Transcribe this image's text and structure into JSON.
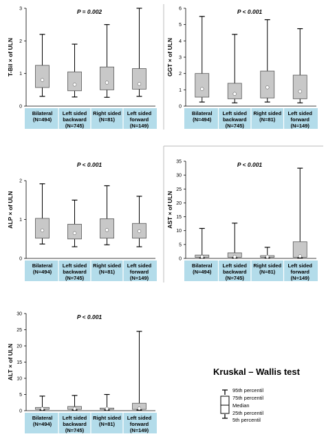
{
  "colors": {
    "box_fill": "#c8c8c8",
    "box_stroke": "#555555",
    "label_band": "#b3dcea",
    "median_marker": "#ffffff",
    "divider": "#bbbbbb"
  },
  "groups": [
    {
      "line1": "Bilateral",
      "line2": "(N=494)"
    },
    {
      "line1": "Left sided",
      "line2": "backward"
    },
    {
      "line1": "Right sided",
      "line2": "(N=81)"
    },
    {
      "line1": "Left sided",
      "line2": "forward"
    }
  ],
  "group_line3": [
    "",
    "(N=745)",
    "",
    "(N=149)"
  ],
  "chart_data": [
    {
      "type": "box",
      "title": "P = 0.002",
      "ylabel": "T-Bil × of ULN",
      "ylim": [
        0,
        3
      ],
      "yticks": [
        "0",
        "1",
        "2",
        "3"
      ],
      "categories": [
        "Bilateral (N=494)",
        "Left sided backward (N=745)",
        "Right sided (N=81)",
        "Left sided forward (N=149)"
      ],
      "p5": [
        0.3,
        0.28,
        0.27,
        0.3
      ],
      "p25": [
        0.57,
        0.47,
        0.5,
        0.52
      ],
      "median": [
        0.8,
        0.66,
        0.72,
        0.68
      ],
      "p75": [
        1.25,
        1.05,
        1.2,
        1.15
      ],
      "p95": [
        2.2,
        1.9,
        2.5,
        3.0
      ]
    },
    {
      "type": "box",
      "title": "P < 0.001",
      "ylabel": "GGT × of ULN",
      "ylim": [
        0,
        6
      ],
      "yticks": [
        "0",
        "1",
        "2",
        "3",
        "4",
        "5",
        "6"
      ],
      "categories": [
        "Bilateral (N=494)",
        "Left sided backward (N=745)",
        "Right sided (N=81)",
        "Left sided forward (N=149)"
      ],
      "p5": [
        0.25,
        0.2,
        0.25,
        0.2
      ],
      "p25": [
        0.55,
        0.45,
        0.5,
        0.45
      ],
      "median": [
        1.05,
        0.75,
        1.15,
        0.9
      ],
      "p75": [
        2.0,
        1.4,
        2.15,
        1.9
      ],
      "p95": [
        5.5,
        4.4,
        5.3,
        4.75
      ]
    },
    {
      "type": "box",
      "title": "P < 0.001",
      "ylabel": "ALP × of ULN",
      "ylim": [
        0,
        2.5
      ],
      "yticks": [
        "0",
        "1",
        "2"
      ],
      "categories": [
        "Bilateral (N=494)",
        "Left sided backward (N=745)",
        "Right sided (N=81)",
        "Left sided forward (N=149)"
      ],
      "p5": [
        0.37,
        0.3,
        0.35,
        0.3
      ],
      "p25": [
        0.52,
        0.5,
        0.52,
        0.52
      ],
      "median": [
        0.72,
        0.65,
        0.73,
        0.7
      ],
      "p75": [
        1.03,
        0.88,
        1.02,
        0.9
      ],
      "p95": [
        1.92,
        1.5,
        1.87,
        1.6
      ]
    },
    {
      "type": "box",
      "title": "P < 0.001",
      "ylabel": "AST × of ULN",
      "ylim": [
        0,
        35
      ],
      "yticks": [
        "0",
        "5",
        "10",
        "15",
        "20",
        "25",
        "30",
        "35"
      ],
      "categories": [
        "Bilateral (N=494)",
        "Left sided backward (N=745)",
        "Right sided (N=81)",
        "Left sided forward (N=149)"
      ],
      "p5": [
        0.2,
        0.2,
        0.2,
        0.2
      ],
      "p25": [
        0.4,
        0.4,
        0.4,
        0.4
      ],
      "median": [
        0.6,
        0.6,
        0.6,
        0.8
      ],
      "p75": [
        1.2,
        2.0,
        1.0,
        6.0
      ],
      "p95": [
        10.8,
        12.7,
        4.0,
        32.5
      ]
    },
    {
      "type": "box",
      "title": "P < 0.001",
      "ylabel": "ALT × of ULN",
      "ylim": [
        0,
        30
      ],
      "yticks": [
        "0",
        "5",
        "10",
        "15",
        "20",
        "25",
        "30"
      ],
      "categories": [
        "Bilateral (N=494)",
        "Left sided backward (N=745)",
        "Right sided (N=81)",
        "Left sided forward (N=149)"
      ],
      "p5": [
        0.2,
        0.2,
        0.2,
        0.2
      ],
      "p25": [
        0.4,
        0.4,
        0.4,
        0.4
      ],
      "median": [
        0.6,
        0.6,
        0.6,
        0.7
      ],
      "p75": [
        1.0,
        1.3,
        0.8,
        2.3
      ],
      "p95": [
        4.5,
        4.7,
        5.0,
        24.5
      ]
    }
  ],
  "legend": {
    "title": "Kruskal – Wallis test",
    "items": [
      "95th percentil",
      "75th percentil",
      "Median",
      "25th percentil",
      "5th percentil"
    ]
  }
}
